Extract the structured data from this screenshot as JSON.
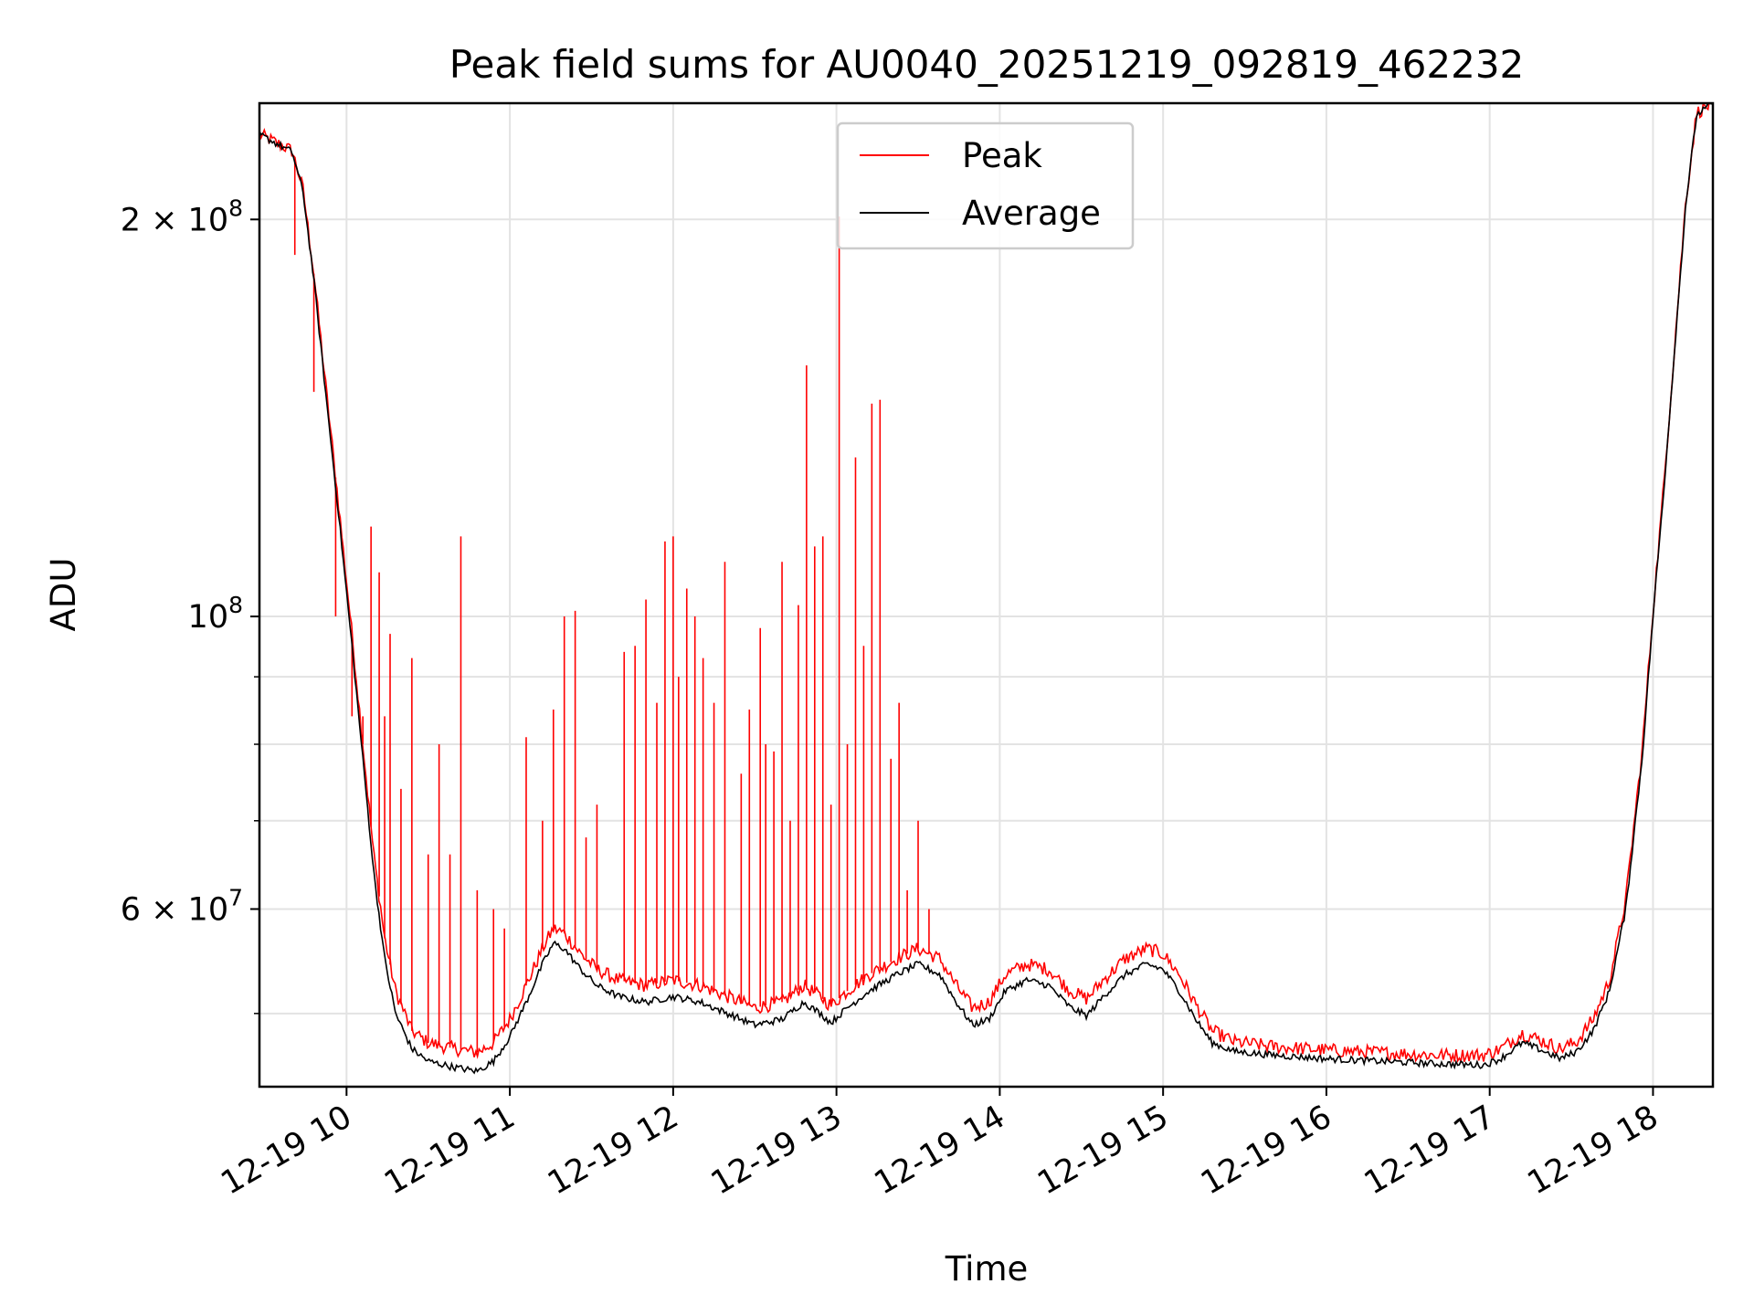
{
  "chart_data": {
    "type": "line",
    "title": "Peak field sums for AU0040_20251219_092819_462232",
    "xlabel": "Time",
    "ylabel": "ADU",
    "x_scale": "time",
    "y_scale": "log",
    "xlim": [
      "2025-12-19 09:28",
      "2025-12-19 18:22"
    ],
    "ylim": [
      44000000,
      245000000
    ],
    "grid": true,
    "legend_position": "top-center",
    "x_ticks": [
      {
        "t": "2025-12-19 10:00",
        "label": "12-19 10"
      },
      {
        "t": "2025-12-19 11:00",
        "label": "12-19 11"
      },
      {
        "t": "2025-12-19 12:00",
        "label": "12-19 12"
      },
      {
        "t": "2025-12-19 13:00",
        "label": "12-19 13"
      },
      {
        "t": "2025-12-19 14:00",
        "label": "12-19 14"
      },
      {
        "t": "2025-12-19 15:00",
        "label": "12-19 15"
      },
      {
        "t": "2025-12-19 16:00",
        "label": "12-19 16"
      },
      {
        "t": "2025-12-19 17:00",
        "label": "12-19 17"
      },
      {
        "t": "2025-12-19 18:00",
        "label": "12-19 18"
      }
    ],
    "y_ticks_major": [
      {
        "value": 60000000,
        "base": "6 × 10",
        "exp": "7"
      },
      {
        "value": 100000000,
        "base": "10",
        "exp": "8"
      },
      {
        "value": 200000000,
        "base": "2 × 10",
        "exp": "8"
      }
    ],
    "y_ticks_minor": [
      50000000,
      70000000,
      80000000,
      90000000
    ],
    "series": [
      {
        "name": "Average",
        "color": "#000000",
        "points": [
          [
            "2025-12-19 09:28",
            232000000
          ],
          [
            "2025-12-19 09:40",
            225000000
          ],
          [
            "2025-12-19 09:44",
            210000000
          ],
          [
            "2025-12-19 09:48",
            180000000
          ],
          [
            "2025-12-19 09:52",
            150000000
          ],
          [
            "2025-12-19 09:57",
            120000000
          ],
          [
            "2025-12-19 10:02",
            95000000
          ],
          [
            "2025-12-19 10:06",
            78000000
          ],
          [
            "2025-12-19 10:10",
            64000000
          ],
          [
            "2025-12-19 10:14",
            55000000
          ],
          [
            "2025-12-19 10:18",
            50000000
          ],
          [
            "2025-12-19 10:24",
            47000000
          ],
          [
            "2025-12-19 10:30",
            46000000
          ],
          [
            "2025-12-19 10:40",
            45500000
          ],
          [
            "2025-12-19 10:48",
            45200000
          ],
          [
            "2025-12-19 10:54",
            46000000
          ],
          [
            "2025-12-19 11:00",
            48000000
          ],
          [
            "2025-12-19 11:06",
            51000000
          ],
          [
            "2025-12-19 11:12",
            54500000
          ],
          [
            "2025-12-19 11:16",
            56500000
          ],
          [
            "2025-12-19 11:20",
            56000000
          ],
          [
            "2025-12-19 11:26",
            54000000
          ],
          [
            "2025-12-19 11:32",
            52500000
          ],
          [
            "2025-12-19 11:40",
            51500000
          ],
          [
            "2025-12-19 11:50",
            51000000
          ],
          [
            "2025-12-19 12:00",
            51500000
          ],
          [
            "2025-12-19 12:10",
            51000000
          ],
          [
            "2025-12-19 12:20",
            50000000
          ],
          [
            "2025-12-19 12:30",
            49000000
          ],
          [
            "2025-12-19 12:40",
            49500000
          ],
          [
            "2025-12-19 12:48",
            51000000
          ],
          [
            "2025-12-19 12:54",
            50000000
          ],
          [
            "2025-12-19 12:58",
            49200000
          ],
          [
            "2025-12-19 13:04",
            50500000
          ],
          [
            "2025-12-19 13:12",
            52000000
          ],
          [
            "2025-12-19 13:22",
            53500000
          ],
          [
            "2025-12-19 13:30",
            54500000
          ],
          [
            "2025-12-19 13:38",
            53500000
          ],
          [
            "2025-12-19 13:44",
            51000000
          ],
          [
            "2025-12-19 13:50",
            49000000
          ],
          [
            "2025-12-19 13:56",
            49500000
          ],
          [
            "2025-12-19 14:02",
            52000000
          ],
          [
            "2025-12-19 14:10",
            53000000
          ],
          [
            "2025-12-19 14:18",
            52500000
          ],
          [
            "2025-12-19 14:26",
            50500000
          ],
          [
            "2025-12-19 14:32",
            49800000
          ],
          [
            "2025-12-19 14:38",
            51500000
          ],
          [
            "2025-12-19 14:46",
            53500000
          ],
          [
            "2025-12-19 14:54",
            54500000
          ],
          [
            "2025-12-19 15:00",
            54000000
          ],
          [
            "2025-12-19 15:06",
            52000000
          ],
          [
            "2025-12-19 15:12",
            49500000
          ],
          [
            "2025-12-19 15:18",
            47500000
          ],
          [
            "2025-12-19 15:26",
            46800000
          ],
          [
            "2025-12-19 15:40",
            46500000
          ],
          [
            "2025-12-19 16:00",
            46200000
          ],
          [
            "2025-12-19 16:20",
            46000000
          ],
          [
            "2025-12-19 16:40",
            45800000
          ],
          [
            "2025-12-19 16:58",
            45700000
          ],
          [
            "2025-12-19 17:04",
            46200000
          ],
          [
            "2025-12-19 17:12",
            47500000
          ],
          [
            "2025-12-19 17:18",
            47000000
          ],
          [
            "2025-12-19 17:26",
            46200000
          ],
          [
            "2025-12-19 17:32",
            46800000
          ],
          [
            "2025-12-19 17:38",
            48500000
          ],
          [
            "2025-12-19 17:44",
            52000000
          ],
          [
            "2025-12-19 17:50",
            60000000
          ],
          [
            "2025-12-19 17:56",
            78000000
          ],
          [
            "2025-12-19 18:00",
            100000000
          ],
          [
            "2025-12-19 18:04",
            125000000
          ],
          [
            "2025-12-19 18:08",
            160000000
          ],
          [
            "2025-12-19 18:12",
            205000000
          ],
          [
            "2025-12-19 18:16",
            240000000
          ],
          [
            "2025-12-19 18:22",
            245000000
          ]
        ]
      },
      {
        "name": "Peak",
        "color": "#ff0000",
        "points": [
          [
            "2025-12-19 09:28",
            232000000
          ],
          [
            "2025-12-19 09:40",
            225500000
          ],
          [
            "2025-12-19 09:44",
            211000000
          ],
          [
            "2025-12-19 09:48",
            182000000
          ],
          [
            "2025-12-19 09:52",
            152000000
          ],
          [
            "2025-12-19 09:57",
            122000000
          ],
          [
            "2025-12-19 10:02",
            97000000
          ],
          [
            "2025-12-19 10:06",
            80000000
          ],
          [
            "2025-12-19 10:10",
            66000000
          ],
          [
            "2025-12-19 10:14",
            57000000
          ],
          [
            "2025-12-19 10:18",
            52000000
          ],
          [
            "2025-12-19 10:24",
            48500000
          ],
          [
            "2025-12-19 10:30",
            47500000
          ],
          [
            "2025-12-19 10:40",
            47000000
          ],
          [
            "2025-12-19 10:48",
            46700000
          ],
          [
            "2025-12-19 10:54",
            47500000
          ],
          [
            "2025-12-19 11:00",
            49500000
          ],
          [
            "2025-12-19 11:06",
            52500000
          ],
          [
            "2025-12-19 11:12",
            56000000
          ],
          [
            "2025-12-19 11:16",
            58000000
          ],
          [
            "2025-12-19 11:20",
            57500000
          ],
          [
            "2025-12-19 11:26",
            55500000
          ],
          [
            "2025-12-19 11:32",
            54000000
          ],
          [
            "2025-12-19 11:40",
            53000000
          ],
          [
            "2025-12-19 11:50",
            52500000
          ],
          [
            "2025-12-19 12:00",
            53000000
          ],
          [
            "2025-12-19 12:10",
            52500000
          ],
          [
            "2025-12-19 12:20",
            51500000
          ],
          [
            "2025-12-19 12:30",
            50500000
          ],
          [
            "2025-12-19 12:40",
            51000000
          ],
          [
            "2025-12-19 12:48",
            52500000
          ],
          [
            "2025-12-19 12:54",
            51500000
          ],
          [
            "2025-12-19 12:58",
            50700000
          ],
          [
            "2025-12-19 13:04",
            52000000
          ],
          [
            "2025-12-19 13:12",
            53500000
          ],
          [
            "2025-12-19 13:22",
            55000000
          ],
          [
            "2025-12-19 13:30",
            56000000
          ],
          [
            "2025-12-19 13:38",
            55000000
          ],
          [
            "2025-12-19 13:44",
            52500000
          ],
          [
            "2025-12-19 13:50",
            50500000
          ],
          [
            "2025-12-19 13:56",
            51000000
          ],
          [
            "2025-12-19 14:02",
            53500000
          ],
          [
            "2025-12-19 14:10",
            54500000
          ],
          [
            "2025-12-19 14:18",
            54000000
          ],
          [
            "2025-12-19 14:26",
            52000000
          ],
          [
            "2025-12-19 14:32",
            51300000
          ],
          [
            "2025-12-19 14:38",
            53000000
          ],
          [
            "2025-12-19 14:46",
            55000000
          ],
          [
            "2025-12-19 14:54",
            56000000
          ],
          [
            "2025-12-19 15:00",
            55500000
          ],
          [
            "2025-12-19 15:06",
            53500000
          ],
          [
            "2025-12-19 15:12",
            50800000
          ],
          [
            "2025-12-19 15:18",
            48500000
          ],
          [
            "2025-12-19 15:26",
            47600000
          ],
          [
            "2025-12-19 15:40",
            47200000
          ],
          [
            "2025-12-19 16:00",
            46900000
          ],
          [
            "2025-12-19 16:20",
            46700000
          ],
          [
            "2025-12-19 16:40",
            46500000
          ],
          [
            "2025-12-19 16:58",
            46500000
          ],
          [
            "2025-12-19 17:04",
            47000000
          ],
          [
            "2025-12-19 17:12",
            48300000
          ],
          [
            "2025-12-19 17:18",
            47800000
          ],
          [
            "2025-12-19 17:26",
            47000000
          ],
          [
            "2025-12-19 17:32",
            47600000
          ],
          [
            "2025-12-19 17:38",
            49500000
          ],
          [
            "2025-12-19 17:44",
            53000000
          ],
          [
            "2025-12-19 17:50",
            61000000
          ],
          [
            "2025-12-19 17:56",
            79000000
          ],
          [
            "2025-12-19 18:00",
            101000000
          ],
          [
            "2025-12-19 18:04",
            126000000
          ],
          [
            "2025-12-19 18:08",
            161000000
          ],
          [
            "2025-12-19 18:12",
            206000000
          ],
          [
            "2025-12-19 18:16",
            241000000
          ],
          [
            "2025-12-19 18:22",
            245000000
          ]
        ],
        "spikes": [
          [
            "2025-12-19 09:41",
            188000000
          ],
          [
            "2025-12-19 09:48",
            148000000
          ],
          [
            "2025-12-19 09:56",
            100000000
          ],
          [
            "2025-12-19 10:02",
            84000000
          ],
          [
            "2025-12-19 10:06",
            84000000
          ],
          [
            "2025-12-19 10:09",
            117000000
          ],
          [
            "2025-12-19 10:12",
            108000000
          ],
          [
            "2025-12-19 10:14",
            84000000
          ],
          [
            "2025-12-19 10:16",
            97000000
          ],
          [
            "2025-12-19 10:20",
            74000000
          ],
          [
            "2025-12-19 10:24",
            93000000
          ],
          [
            "2025-12-19 10:30",
            66000000
          ],
          [
            "2025-12-19 10:34",
            80000000
          ],
          [
            "2025-12-19 10:38",
            66000000
          ],
          [
            "2025-12-19 10:42",
            115000000
          ],
          [
            "2025-12-19 10:48",
            62000000
          ],
          [
            "2025-12-19 10:54",
            60000000
          ],
          [
            "2025-12-19 10:58",
            58000000
          ],
          [
            "2025-12-19 11:06",
            81000000
          ],
          [
            "2025-12-19 11:12",
            70000000
          ],
          [
            "2025-12-19 11:16",
            85000000
          ],
          [
            "2025-12-19 11:20",
            100000000
          ],
          [
            "2025-12-19 11:24",
            101000000
          ],
          [
            "2025-12-19 11:28",
            68000000
          ],
          [
            "2025-12-19 11:32",
            72000000
          ],
          [
            "2025-12-19 11:42",
            94000000
          ],
          [
            "2025-12-19 11:46",
            95000000
          ],
          [
            "2025-12-19 11:50",
            103000000
          ],
          [
            "2025-12-19 11:54",
            86000000
          ],
          [
            "2025-12-19 11:57",
            114000000
          ],
          [
            "2025-12-19 12:00",
            115000000
          ],
          [
            "2025-12-19 12:02",
            90000000
          ],
          [
            "2025-12-19 12:05",
            105000000
          ],
          [
            "2025-12-19 12:08",
            100000000
          ],
          [
            "2025-12-19 12:11",
            93000000
          ],
          [
            "2025-12-19 12:15",
            86000000
          ],
          [
            "2025-12-19 12:19",
            110000000
          ],
          [
            "2025-12-19 12:25",
            76000000
          ],
          [
            "2025-12-19 12:28",
            85000000
          ],
          [
            "2025-12-19 12:32",
            98000000
          ],
          [
            "2025-12-19 12:34",
            80000000
          ],
          [
            "2025-12-19 12:37",
            79000000
          ],
          [
            "2025-12-19 12:40",
            110000000
          ],
          [
            "2025-12-19 12:43",
            70000000
          ],
          [
            "2025-12-19 12:46",
            102000000
          ],
          [
            "2025-12-19 12:49",
            155000000
          ],
          [
            "2025-12-19 12:52",
            113000000
          ],
          [
            "2025-12-19 12:55",
            115000000
          ],
          [
            "2025-12-19 12:58",
            72000000
          ],
          [
            "2025-12-19 13:01",
            201000000
          ],
          [
            "2025-12-19 13:04",
            80000000
          ],
          [
            "2025-12-19 13:07",
            132000000
          ],
          [
            "2025-12-19 13:10",
            95000000
          ],
          [
            "2025-12-19 13:13",
            145000000
          ],
          [
            "2025-12-19 13:16",
            146000000
          ],
          [
            "2025-12-19 13:20",
            78000000
          ],
          [
            "2025-12-19 13:23",
            86000000
          ],
          [
            "2025-12-19 13:26",
            62000000
          ],
          [
            "2025-12-19 13:30",
            70000000
          ],
          [
            "2025-12-19 13:34",
            60000000
          ]
        ]
      }
    ]
  }
}
